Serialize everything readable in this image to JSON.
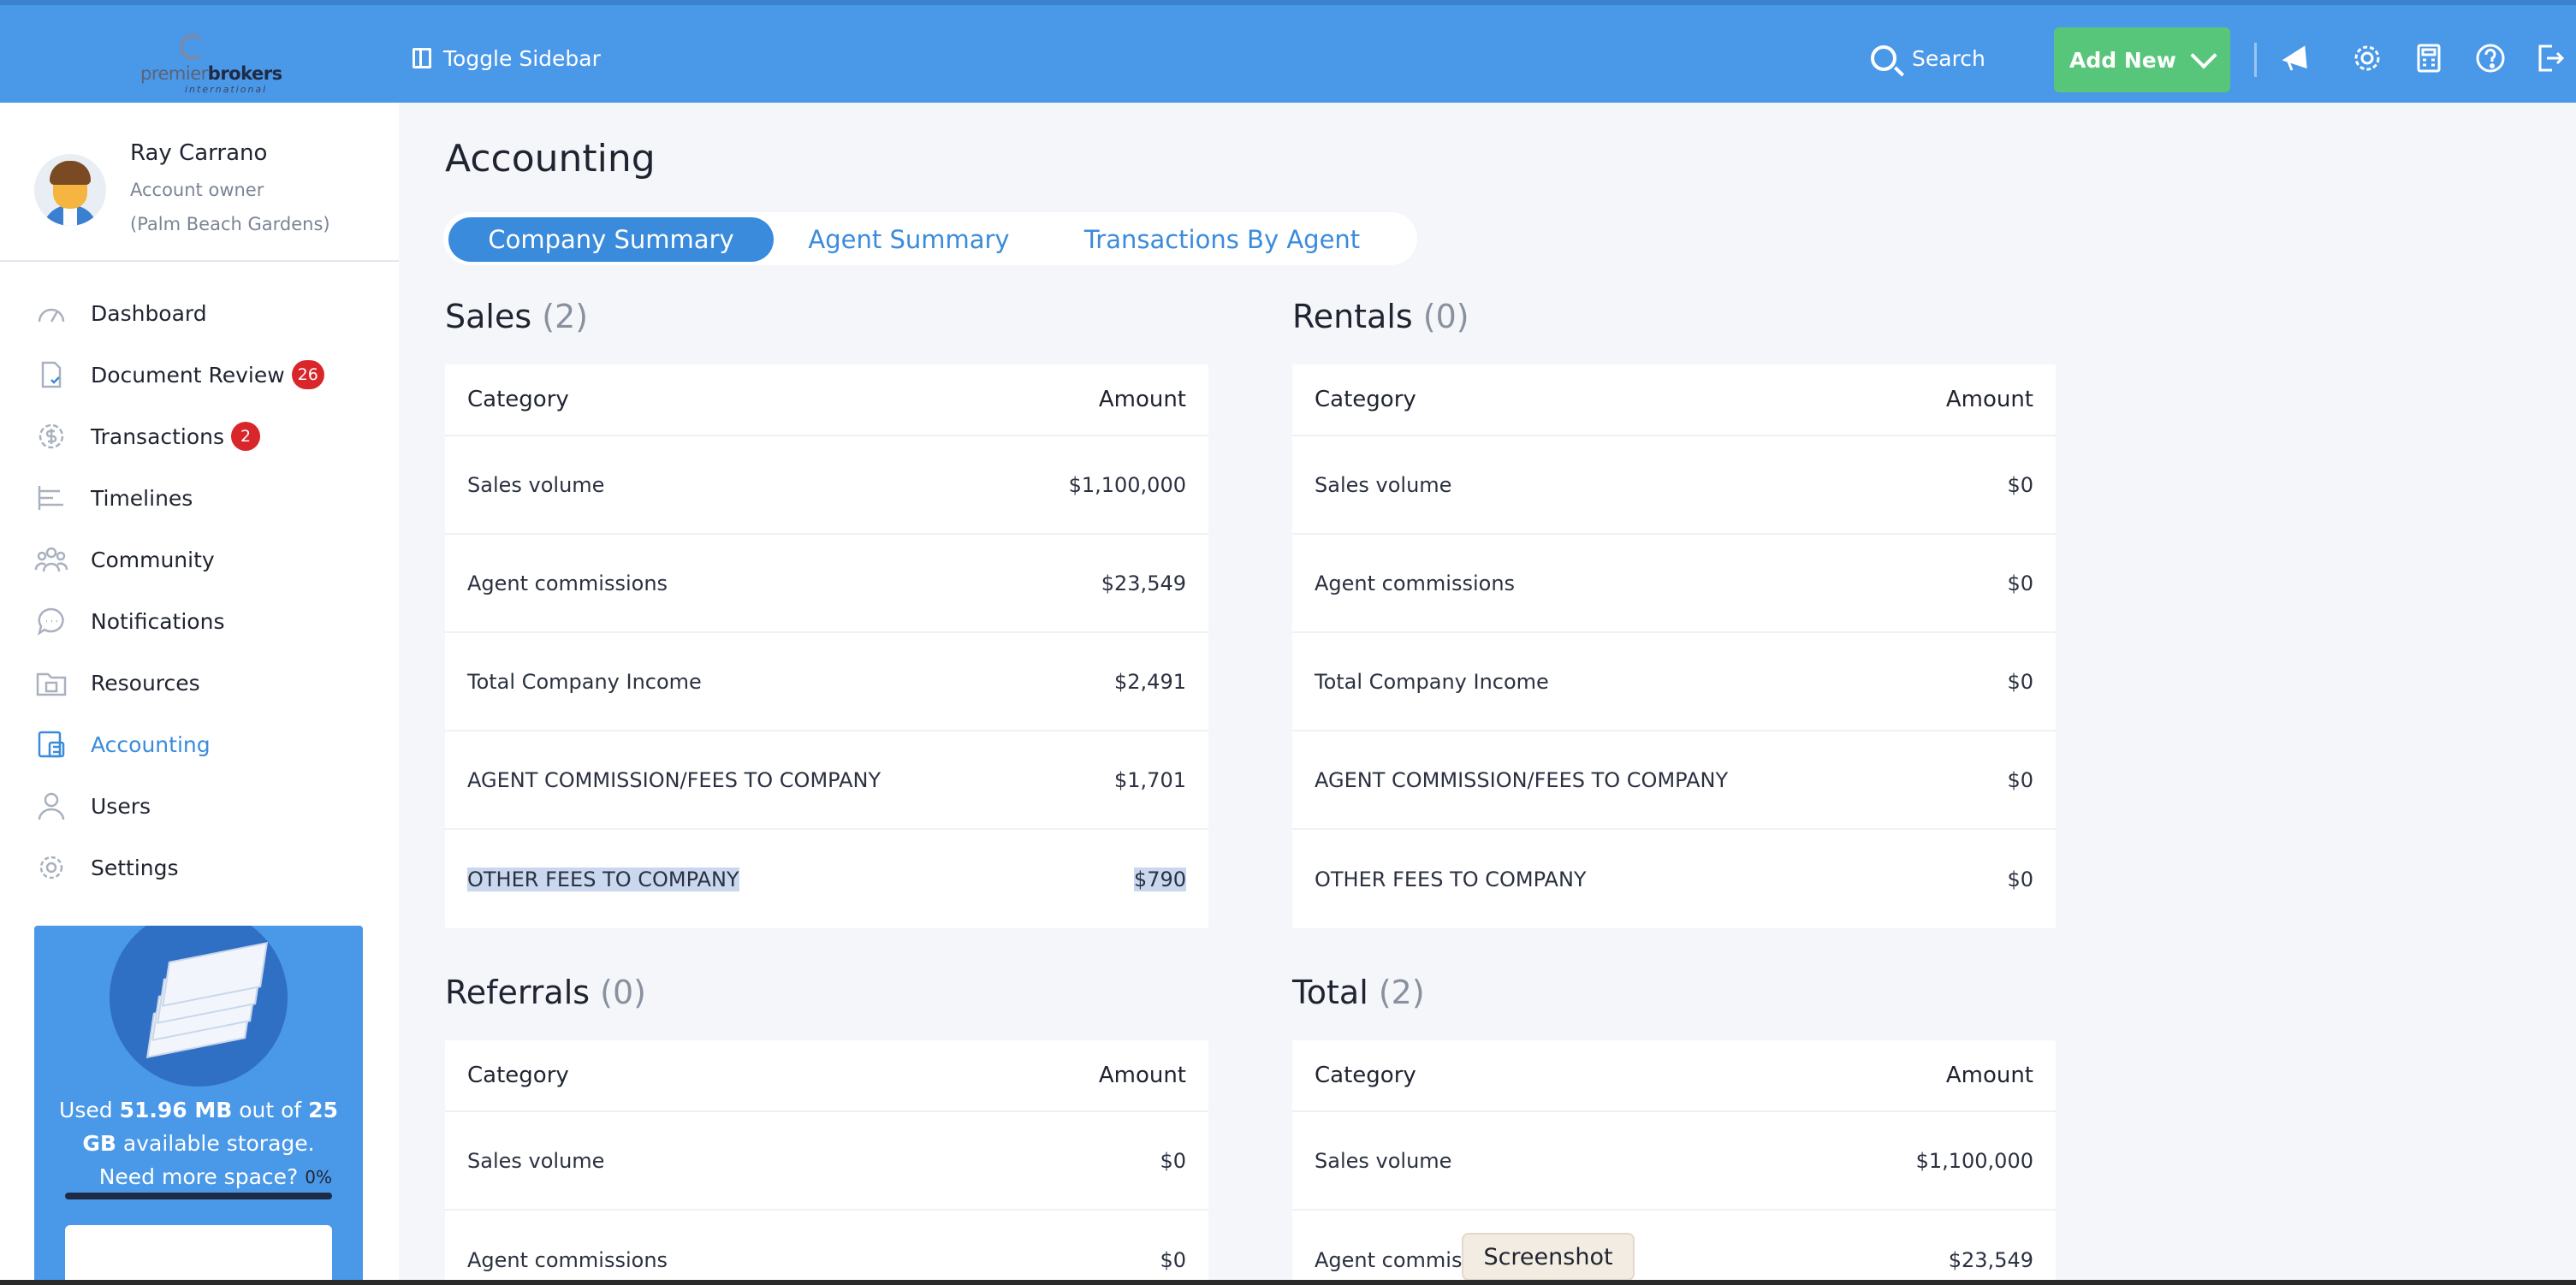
{
  "header": {
    "logo_text_light": "premier",
    "logo_text_bold": "brokers",
    "logo_sub": "international",
    "toggle_sidebar": "Toggle Sidebar",
    "search": "Search",
    "add_new": "Add New"
  },
  "profile": {
    "name": "Ray Carrano",
    "role": "Account owner",
    "location": "(Palm Beach Gardens)"
  },
  "nav": {
    "items": [
      {
        "label": "Dashboard",
        "icon": "speedometer-icon"
      },
      {
        "label": "Document Review",
        "icon": "document-check-icon",
        "badge": "26"
      },
      {
        "label": "Transactions",
        "icon": "dollar-circle-icon",
        "badge": "2"
      },
      {
        "label": "Timelines",
        "icon": "timeline-icon"
      },
      {
        "label": "Community",
        "icon": "people-icon"
      },
      {
        "label": "Notifications",
        "icon": "chat-bubble-icon"
      },
      {
        "label": "Resources",
        "icon": "folder-icon"
      },
      {
        "label": "Accounting",
        "icon": "calculator-icon",
        "active": true
      },
      {
        "label": "Users",
        "icon": "user-icon"
      },
      {
        "label": "Settings",
        "icon": "gear-icon"
      }
    ]
  },
  "storage": {
    "used_prefix": "Used ",
    "used": "51.96 MB",
    "out_of": " out of ",
    "total": "25 GB",
    "suffix": " available storage. Need more space?",
    "percent_label": "0%",
    "percent": 0
  },
  "page": {
    "title": "Accounting",
    "tabs": [
      "Company Summary",
      "Agent Summary",
      "Transactions By Agent"
    ],
    "active_tab": 0
  },
  "sections": {
    "sales": {
      "title": "Sales",
      "count": "(2)",
      "head": [
        "Category",
        "Amount"
      ],
      "rows": [
        [
          "Sales volume",
          "$1,100,000"
        ],
        [
          "Agent commissions",
          "$23,549"
        ],
        [
          "Total Company Income",
          "$2,491"
        ],
        [
          "AGENT COMMISSION/FEES TO COMPANY",
          "$1,701"
        ],
        [
          "OTHER FEES TO COMPANY",
          "$790"
        ]
      ]
    },
    "rentals": {
      "title": "Rentals",
      "count": "(0)",
      "head": [
        "Category",
        "Amount"
      ],
      "rows": [
        [
          "Sales volume",
          "$0"
        ],
        [
          "Agent commissions",
          "$0"
        ],
        [
          "Total Company Income",
          "$0"
        ],
        [
          "AGENT COMMISSION/FEES TO COMPANY",
          "$0"
        ],
        [
          "OTHER FEES TO COMPANY",
          "$0"
        ]
      ]
    },
    "referrals": {
      "title": "Referrals",
      "count": "(0)",
      "head": [
        "Category",
        "Amount"
      ],
      "rows": [
        [
          "Sales volume",
          "$0"
        ],
        [
          "Agent commissions",
          "$0"
        ]
      ]
    },
    "total": {
      "title": "Total",
      "count": "(2)",
      "head": [
        "Category",
        "Amount"
      ],
      "rows": [
        [
          "Sales volume",
          "$1,100,000"
        ],
        [
          "Agent commissions",
          "$23,549"
        ]
      ]
    }
  },
  "toast": "Screenshot",
  "colors": {
    "primary": "#4a98e8",
    "accent": "#3a8bdc",
    "success": "#58c67a",
    "badge": "#d9262b"
  }
}
